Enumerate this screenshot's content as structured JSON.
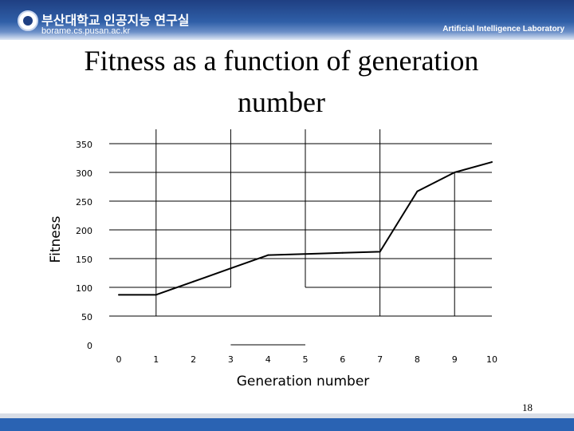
{
  "header": {
    "university_name": "부산대학교 인공지능 연구실",
    "url": "borame.cs.pusan.ac.kr",
    "lab_name": "Artificial Intelligence Laboratory"
  },
  "slide": {
    "title": "Fitness as a function of generation number",
    "page_number": "18"
  },
  "chart_data": {
    "type": "line",
    "xlabel": "Generation number",
    "ylabel": "Fitness",
    "x": [
      0,
      1,
      2,
      3,
      4,
      5,
      6,
      7,
      8,
      9,
      10
    ],
    "values": [
      87,
      87,
      110,
      133,
      156,
      158,
      160,
      162,
      267,
      300,
      318
    ],
    "xlim": [
      0,
      10
    ],
    "ylim": [
      0,
      350
    ],
    "x_ticks": [
      "0",
      "1",
      "2",
      "3",
      "4",
      "5",
      "6",
      "7",
      "8",
      "9",
      "10"
    ],
    "y_ticks": [
      "0",
      "50",
      "100",
      "150",
      "200",
      "250",
      "300",
      "350"
    ],
    "grid": true
  }
}
